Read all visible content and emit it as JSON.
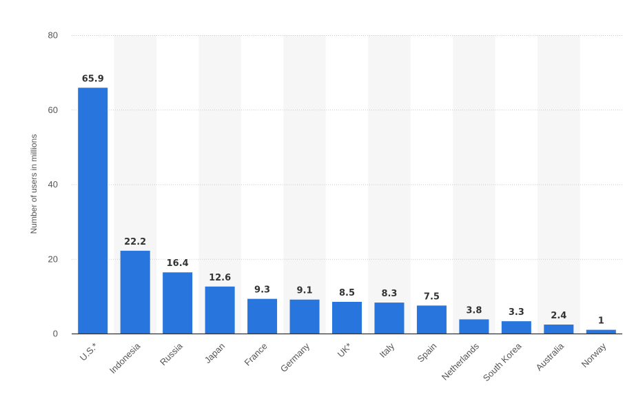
{
  "chart_data": {
    "type": "bar",
    "categories": [
      "U.S.*",
      "Indonesia",
      "Russia",
      "Japan",
      "France",
      "Germany",
      "UK*",
      "Italy",
      "Spain",
      "Netherlands",
      "South Korea",
      "Australia",
      "Norway"
    ],
    "values": [
      65.9,
      22.2,
      16.4,
      12.6,
      9.3,
      9.1,
      8.5,
      8.3,
      7.5,
      3.8,
      3.3,
      2.4,
      1
    ],
    "value_labels": [
      "65.9",
      "22.2",
      "16.4",
      "12.6",
      "9.3",
      "9.1",
      "8.5",
      "8.3",
      "7.5",
      "3.8",
      "3.3",
      "2.4",
      "1"
    ],
    "title": "",
    "xlabel": "",
    "ylabel": "Number of users in millions",
    "ylim": [
      0,
      80
    ],
    "yticks": [
      0,
      20,
      40,
      60,
      80
    ],
    "grid": true,
    "legend": "none",
    "bar_color": "#2775dd"
  }
}
